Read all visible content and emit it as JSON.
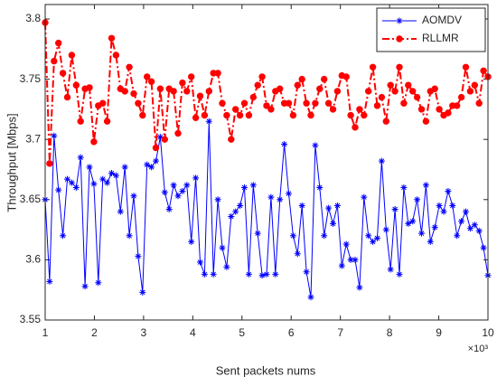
{
  "chart_data": {
    "type": "line",
    "xlabel": "Sent packets nums",
    "ylabel": "Throughput [Mbps]",
    "x_multiplier": "×10³",
    "x": [
      1,
      1.09,
      1.18,
      1.27,
      1.36,
      1.45,
      1.54,
      1.63,
      1.72,
      1.81,
      1.9,
      1.99,
      2.08,
      2.17,
      2.26,
      2.35,
      2.44,
      2.53,
      2.62,
      2.71,
      2.8,
      2.89,
      2.98,
      3.07,
      3.16,
      3.25,
      3.34,
      3.43,
      3.52,
      3.61,
      3.7,
      3.79,
      3.88,
      3.97,
      4.06,
      4.15,
      4.24,
      4.33,
      4.42,
      4.51,
      4.6,
      4.69,
      4.78,
      4.87,
      4.96,
      5.05,
      5.14,
      5.23,
      5.32,
      5.41,
      5.5,
      5.59,
      5.68,
      5.77,
      5.86,
      5.95,
      6.04,
      6.13,
      6.22,
      6.31,
      6.4,
      6.49,
      6.58,
      6.67,
      6.76,
      6.85,
      6.94,
      7.03,
      7.12,
      7.21,
      7.3,
      7.39,
      7.48,
      7.57,
      7.66,
      7.75,
      7.84,
      7.93,
      8.02,
      8.11,
      8.2,
      8.29,
      8.38,
      8.47,
      8.56,
      8.65,
      8.74,
      8.83,
      8.92,
      9.01,
      9.1,
      9.19,
      9.28,
      9.37,
      9.46,
      9.55,
      9.64,
      9.73,
      9.82,
      9.91,
      10
    ],
    "series": [
      {
        "name": "AOMDV",
        "color": "#0000ff",
        "line_style": "solid",
        "marker": "star",
        "values": [
          3.65,
          3.582,
          3.703,
          3.658,
          3.62,
          3.667,
          3.664,
          3.66,
          3.685,
          3.578,
          3.677,
          3.663,
          3.581,
          3.667,
          3.664,
          3.672,
          3.67,
          3.64,
          3.677,
          3.62,
          3.653,
          3.603,
          3.573,
          3.679,
          3.677,
          3.682,
          3.702,
          3.656,
          3.642,
          3.662,
          3.653,
          3.657,
          3.662,
          3.615,
          3.668,
          3.598,
          3.588,
          3.715,
          3.588,
          3.65,
          3.61,
          3.594,
          3.636,
          3.64,
          3.645,
          3.66,
          3.588,
          3.662,
          3.622,
          3.587,
          3.588,
          3.652,
          3.588,
          3.65,
          3.696,
          3.655,
          3.62,
          3.605,
          3.645,
          3.59,
          3.569,
          3.695,
          3.66,
          3.62,
          3.643,
          3.63,
          3.645,
          3.595,
          3.613,
          3.6,
          3.6,
          3.577,
          3.652,
          3.62,
          3.615,
          3.618,
          3.682,
          3.625,
          3.592,
          3.642,
          3.588,
          3.66,
          3.63,
          3.632,
          3.65,
          3.622,
          3.662,
          3.615,
          3.627,
          3.645,
          3.64,
          3.657,
          3.645,
          3.62,
          3.632,
          3.64,
          3.626,
          3.629,
          3.624,
          3.61,
          3.587
        ]
      },
      {
        "name": "RLLMR",
        "color": "#ff0000",
        "line_style": "dashdot",
        "marker": "circle",
        "values": [
          3.797,
          3.68,
          3.765,
          3.78,
          3.755,
          3.735,
          3.77,
          3.745,
          3.715,
          3.742,
          3.743,
          3.698,
          3.728,
          3.73,
          3.715,
          3.784,
          3.77,
          3.742,
          3.74,
          3.76,
          3.738,
          3.73,
          3.72,
          3.752,
          3.748,
          3.693,
          3.742,
          3.7,
          3.742,
          3.74,
          3.705,
          3.747,
          3.74,
          3.752,
          3.718,
          3.736,
          3.72,
          3.74,
          3.755,
          3.755,
          3.73,
          3.72,
          3.7,
          3.725,
          3.72,
          3.73,
          3.72,
          3.735,
          3.745,
          3.752,
          3.728,
          3.725,
          3.74,
          3.742,
          3.73,
          3.73,
          3.72,
          3.745,
          3.75,
          3.73,
          3.72,
          3.73,
          3.742,
          3.75,
          3.73,
          3.725,
          3.74,
          3.753,
          3.752,
          3.72,
          3.71,
          3.725,
          3.72,
          3.74,
          3.76,
          3.728,
          3.735,
          3.715,
          3.745,
          3.74,
          3.76,
          3.73,
          3.745,
          3.74,
          3.735,
          3.725,
          3.715,
          3.74,
          3.742,
          3.725,
          3.72,
          3.722,
          3.728,
          3.728,
          3.735,
          3.76,
          3.74,
          3.745,
          3.73,
          3.757,
          3.752
        ]
      }
    ],
    "xlim": [
      1,
      10
    ],
    "xticks": [
      1,
      2,
      3,
      4,
      5,
      6,
      7,
      8,
      9,
      10
    ],
    "ylim": [
      3.55,
      3.812
    ],
    "yticks": [
      3.55,
      3.6,
      3.65,
      3.7,
      3.75,
      3.8
    ],
    "legend": "top-right"
  }
}
